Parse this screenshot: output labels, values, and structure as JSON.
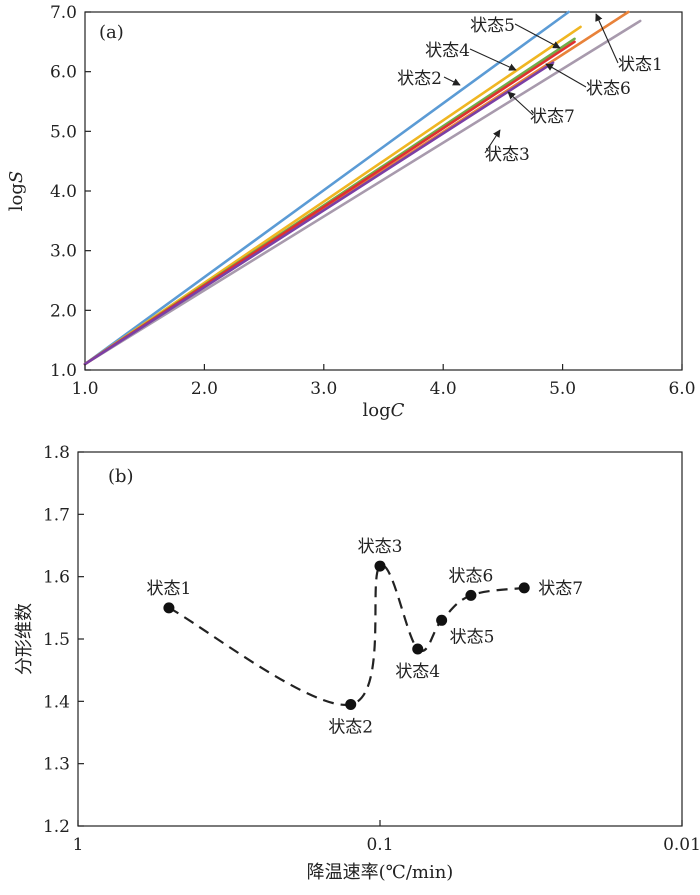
{
  "chart_data": [
    {
      "panel_label": "(a)",
      "type": "line",
      "xlabel_main": "log",
      "xlabel_var": "C",
      "ylabel_main": "log",
      "ylabel_var": "S",
      "xlim": [
        1.0,
        6.0
      ],
      "ylim": [
        1.0,
        7.0
      ],
      "xticks": [
        "1.0",
        "2.0",
        "3.0",
        "4.0",
        "5.0",
        "6.0"
      ],
      "yticks": [
        "1.0",
        "2.0",
        "3.0",
        "4.0",
        "5.0",
        "6.0",
        "7.0"
      ],
      "series": [
        {
          "name": "状态1",
          "color": "#e8823a",
          "x": [
            1.0,
            5.55
          ],
          "y": [
            1.1,
            7.0
          ],
          "label_pos": "right"
        },
        {
          "name": "状态2",
          "color": "#5b9bd5",
          "x": [
            1.0,
            5.05
          ],
          "y": [
            1.1,
            7.0
          ],
          "label_pos": "top-left"
        },
        {
          "name": "状态3",
          "color": "#a89aad",
          "x": [
            1.0,
            5.65
          ],
          "y": [
            1.1,
            6.85
          ],
          "label_pos": "bottom"
        },
        {
          "name": "状态4",
          "color": "#f0b622",
          "x": [
            1.0,
            5.15
          ],
          "y": [
            1.1,
            6.75
          ],
          "label_pos": "top-left"
        },
        {
          "name": "状态5",
          "color": "#70ad47",
          "x": [
            1.0,
            5.1
          ],
          "y": [
            1.1,
            6.55
          ],
          "label_pos": "top"
        },
        {
          "name": "状态6",
          "color": "#e03030",
          "x": [
            1.0,
            5.1
          ],
          "y": [
            1.1,
            6.5
          ],
          "label_pos": "right"
        },
        {
          "name": "状态7",
          "color": "#7b3fa5",
          "x": [
            1.0,
            4.92
          ],
          "y": [
            1.1,
            6.15
          ],
          "label_pos": "bottom-right"
        }
      ]
    },
    {
      "panel_label": "(b)",
      "type": "scatter-line",
      "xlabel": "降温速率(℃/min)",
      "ylabel": "分形维数",
      "xscale": "log-reversed",
      "xlim": [
        1,
        0.01
      ],
      "ylim": [
        1.2,
        1.8
      ],
      "xticks": [
        "1",
        "0.1",
        "0.01"
      ],
      "yticks": [
        "1.2",
        "1.3",
        "1.4",
        "1.5",
        "1.6",
        "1.7",
        "1.8"
      ],
      "points": [
        {
          "label": "状态1",
          "x": 0.5,
          "y": 1.55,
          "label_pos": "top"
        },
        {
          "label": "状态2",
          "x": 0.125,
          "y": 1.395,
          "label_pos": "bottom"
        },
        {
          "label": "状态3",
          "x": 0.1,
          "y": 1.617,
          "label_pos": "top"
        },
        {
          "label": "状态4",
          "x": 0.075,
          "y": 1.484,
          "label_pos": "bottom"
        },
        {
          "label": "状态5",
          "x": 0.0625,
          "y": 1.53,
          "label_pos": "bottom-right"
        },
        {
          "label": "状态6",
          "x": 0.05,
          "y": 1.57,
          "label_pos": "top"
        },
        {
          "label": "状态7",
          "x": 0.0333,
          "y": 1.582,
          "label_pos": "right"
        }
      ]
    }
  ]
}
